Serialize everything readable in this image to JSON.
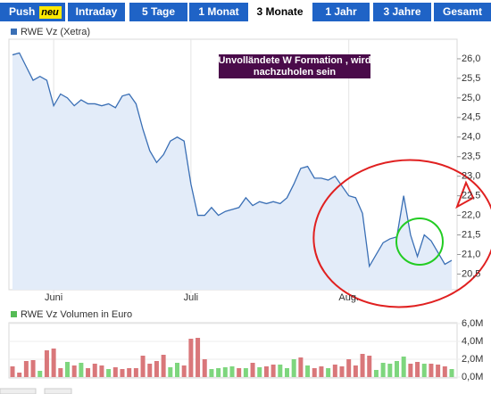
{
  "tabs": [
    {
      "label": "Push",
      "badge": "neu"
    },
    {
      "label": "Intraday"
    },
    {
      "label": "5 Tage"
    },
    {
      "label": "1 Monat"
    },
    {
      "label": "3 Monate"
    },
    {
      "label": "1 Jahr"
    },
    {
      "label": "3 Jahre"
    },
    {
      "label": "Gesamt"
    }
  ],
  "selected_tab": "3 Monate",
  "chart_data": [
    {
      "type": "line",
      "legend": "RWE Vz (Xetra)",
      "color": "#3a6fb5",
      "fill": "#e3ecf9",
      "annotation": [
        "Unvolländete W Formation , wird",
        "nachzuholen sein"
      ],
      "categories": [
        null,
        null,
        null,
        null,
        null,
        null,
        "Juni",
        null,
        null,
        null,
        null,
        null,
        null,
        null,
        null,
        null,
        null,
        null,
        null,
        null,
        null,
        null,
        null,
        null,
        null,
        null,
        "Juli",
        null,
        null,
        null,
        null,
        null,
        null,
        null,
        null,
        null,
        null,
        null,
        null,
        null,
        null,
        null,
        null,
        null,
        null,
        null,
        null,
        null,
        null,
        "Aug.",
        null,
        null,
        null,
        null,
        null,
        null,
        null,
        null,
        null,
        null,
        null,
        null,
        null,
        null,
        null
      ],
      "values": [
        26.1,
        26.15,
        25.8,
        25.45,
        25.55,
        25.45,
        24.8,
        25.1,
        25.0,
        24.8,
        24.95,
        24.85,
        24.85,
        24.8,
        24.85,
        24.75,
        25.05,
        25.1,
        24.85,
        24.2,
        23.65,
        23.35,
        23.55,
        23.9,
        24.0,
        23.9,
        22.8,
        22.0,
        22.0,
        22.2,
        22.0,
        22.1,
        22.15,
        22.2,
        22.45,
        22.25,
        22.35,
        22.3,
        22.35,
        22.3,
        22.45,
        22.8,
        23.2,
        23.25,
        22.95,
        22.95,
        22.9,
        23.0,
        22.75,
        22.5,
        22.45,
        22.05,
        20.7,
        21.0,
        21.3,
        21.4,
        21.45,
        22.5,
        21.5,
        20.95,
        21.5,
        21.35,
        21.05,
        20.75,
        20.85
      ],
      "ylim": [
        20.1,
        26.5
      ],
      "yticks": [
        {
          "value": 20.5,
          "label": "20,5"
        },
        {
          "value": 21,
          "label": "21,0"
        },
        {
          "value": 21.5,
          "label": "21,5"
        },
        {
          "value": 22,
          "label": "22,0"
        },
        {
          "value": 22.5,
          "label": "22,5"
        },
        {
          "value": 23,
          "label": "23,0"
        },
        {
          "value": 23.5,
          "label": "23,5"
        },
        {
          "value": 24,
          "label": "24,0"
        },
        {
          "value": 24.5,
          "label": "24,5"
        },
        {
          "value": 25,
          "label": "25,0"
        },
        {
          "value": 25.5,
          "label": "25,5"
        },
        {
          "value": 26,
          "label": "26,0"
        }
      ]
    },
    {
      "type": "bar",
      "legend": "RWE Vz Volumen in Euro",
      "color": "#55bb55",
      "values": [
        1200000,
        500000,
        1800000,
        1900000,
        700000,
        3000000,
        3200000,
        1000000,
        1700000,
        1300000,
        1600000,
        1000000,
        1500000,
        1300000,
        900000,
        1100000,
        900000,
        1000000,
        1000000,
        2400000,
        1500000,
        1800000,
        2500000,
        1100000,
        1600000,
        1300000,
        4300000,
        4400000,
        2000000,
        900000,
        1000000,
        1100000,
        1200000,
        1000000,
        1000000,
        1600000,
        1100000,
        1200000,
        1400000,
        1400000,
        1000000,
        2000000,
        2200000,
        1300000,
        1000000,
        1200000,
        1000000,
        1400000,
        1200000,
        2000000,
        1300000,
        2600000,
        2400000,
        800000,
        1600000,
        1500000,
        1800000,
        2300000,
        1500000,
        1700000,
        1500000,
        1500000,
        1400000,
        1200000,
        900000
      ],
      "colors": [
        "#d9777a",
        "#d9777a",
        "#d9777a",
        "#d9777a",
        "#7ed67e",
        "#d9777a",
        "#d9777a",
        "#d9777a",
        "#7ed67e",
        "#d9777a",
        "#7ed67e",
        "#d9777a",
        "#d9777a",
        "#d9777a",
        "#7ed67e",
        "#d9777a",
        "#d9777a",
        "#d9777a",
        "#d9777a",
        "#d9777a",
        "#d9777a",
        "#d9777a",
        "#d9777a",
        "#7ed67e",
        "#7ed67e",
        "#d9777a",
        "#d9777a",
        "#d9777a",
        "#d9777a",
        "#7ed67e",
        "#7ed67e",
        "#7ed67e",
        "#7ed67e",
        "#d9777a",
        "#7ed67e",
        "#d9777a",
        "#7ed67e",
        "#d9777a",
        "#d9777a",
        "#7ed67e",
        "#7ed67e",
        "#7ed67e",
        "#d9777a",
        "#7ed67e",
        "#d9777a",
        "#d9777a",
        "#7ed67e",
        "#d9777a",
        "#d9777a",
        "#d9777a",
        "#d9777a",
        "#d9777a",
        "#d9777a",
        "#7ed67e",
        "#7ed67e",
        "#7ed67e",
        "#7ed67e",
        "#7ed67e",
        "#d9777a",
        "#d9777a",
        "#7ed67e",
        "#d9777a",
        "#d9777a",
        "#d9777a",
        "#7ed67e"
      ],
      "ylim": [
        0,
        6000000
      ],
      "yticks": [
        {
          "value": 0,
          "label": "0,0M"
        },
        {
          "value": 2000000,
          "label": "2,0M"
        },
        {
          "value": 4000000,
          "label": "4,0M"
        },
        {
          "value": 6000000,
          "label": "6,0M"
        }
      ]
    }
  ]
}
